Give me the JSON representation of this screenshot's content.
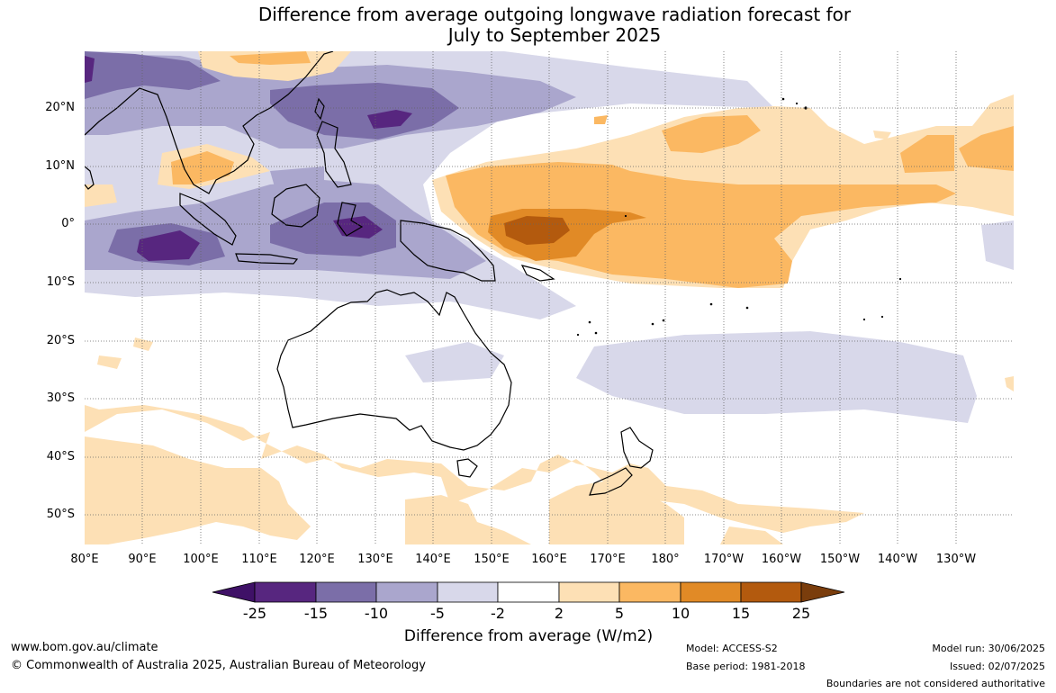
{
  "title_line1": "Difference from average outgoing longwave radiation forecast for",
  "title_line2": "July to September 2025",
  "lat_labels": [
    "20°N",
    "10°N",
    "0°",
    "10°S",
    "20°S",
    "30°S",
    "40°S",
    "50°S"
  ],
  "lon_labels": [
    "80°E",
    "90°E",
    "100°E",
    "110°E",
    "120°E",
    "130°E",
    "140°E",
    "150°E",
    "160°E",
    "170°E",
    "180°",
    "170°W",
    "160°W",
    "150°W",
    "140°W",
    "130°W"
  ],
  "colorbar": {
    "ticks": [
      "-25",
      "-15",
      "-10",
      "-5",
      "-2",
      "2",
      "5",
      "10",
      "15",
      "25"
    ],
    "colors": [
      "#3f1167",
      "#57267f",
      "#7b6ea8",
      "#aaa6cd",
      "#d8d8ea",
      "#ffffff",
      "#fde0b5",
      "#fbb862",
      "#e18a26",
      "#b35a0e",
      "#7a3d0c"
    ],
    "title": "Difference from average (W/m2)"
  },
  "footer": {
    "url": "www.bom.gov.au/climate",
    "copyright": "© Commonwealth of Australia 2025, Australian Bureau of Meteorology",
    "model": "Model: ACCESS-S2",
    "base_period": "Base period: 1981-2018",
    "model_run": "Model run: 30/06/2025",
    "issued": "Issued: 02/07/2025",
    "disclaimer": "Boundaries are not considered authoritative"
  }
}
